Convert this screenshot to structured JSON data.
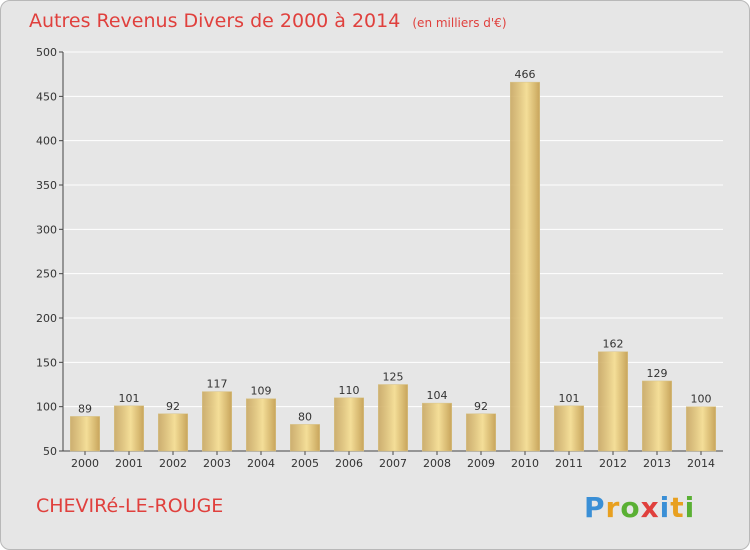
{
  "header": {
    "title": "Autres Revenus Divers de 2000 à 2014",
    "unit": "(en milliers d'€)"
  },
  "footer": {
    "location": "CHEVIRé-LE-ROUGE",
    "logo_letters": [
      "P",
      "r",
      "o",
      "x",
      "i",
      "t",
      "i"
    ],
    "logo_colors": [
      "#3a8fd6",
      "#e8a020",
      "#5ab034",
      "#e0403d",
      "#3a8fd6",
      "#e8a020",
      "#5ab034"
    ]
  },
  "colors": {
    "bar_light": "#f4de98",
    "bar_dark": "#c8a55c",
    "grid": "#ffffff",
    "text": "#333333",
    "accent": "#e0403d"
  },
  "chart_data": {
    "type": "bar",
    "title": "Autres Revenus Divers de 2000 à 2014",
    "subtitle": "(en milliers d'€)",
    "categories": [
      "2000",
      "2001",
      "2002",
      "2003",
      "2004",
      "2005",
      "2006",
      "2007",
      "2008",
      "2009",
      "2010",
      "2011",
      "2012",
      "2013",
      "2014"
    ],
    "values": [
      89,
      101,
      92,
      117,
      109,
      80,
      110,
      125,
      104,
      92,
      466,
      101,
      162,
      129,
      100
    ],
    "ylim": [
      50,
      500
    ],
    "yticks": [
      50,
      100,
      150,
      200,
      250,
      300,
      350,
      400,
      450,
      500
    ],
    "grid": true,
    "data_labels": true
  }
}
